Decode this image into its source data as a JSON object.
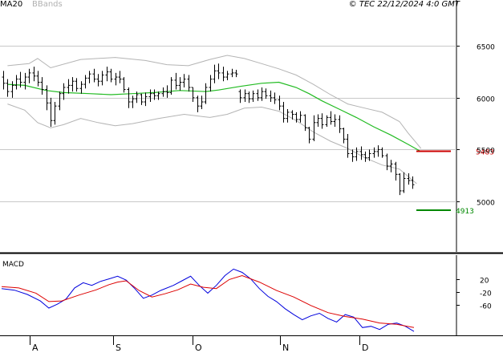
{
  "header": {
    "legend_ma": "MA20",
    "legend_bbands": "BBands",
    "source": "© TEC 22/12/2024 4:0 GMT"
  },
  "colors": {
    "ma": "#22bb22",
    "bbands": "#b4b4b4",
    "price": "#000000",
    "resistance": "#cc0000",
    "support": "#008800",
    "macd": "#0000dd",
    "signal": "#dd0000",
    "grid": "#c8c8c8"
  },
  "chart_data": [
    {
      "type": "candlestick",
      "title": "",
      "y_ticks": [
        6500,
        6000,
        5500,
        5000
      ],
      "ylim": [
        4510,
        6945
      ],
      "x_ticks": [
        "A",
        "S",
        "O",
        "N",
        "D"
      ],
      "ma_label": "MA20",
      "bands_label": "BBands",
      "levels": [
        {
          "name": "resistance",
          "value": 5483,
          "label": "5483"
        },
        {
          "name": "support",
          "value": 4913,
          "label": "4913"
        }
      ],
      "ohlc": [
        [
          6200,
          6260,
          6080,
          6140
        ],
        [
          6140,
          6180,
          6010,
          6060
        ],
        [
          6060,
          6160,
          6000,
          6120
        ],
        [
          6120,
          6220,
          6080,
          6180
        ],
        [
          6180,
          6250,
          6100,
          6150
        ],
        [
          6150,
          6240,
          6080,
          6200
        ],
        [
          6200,
          6280,
          6140,
          6240
        ],
        [
          6240,
          6300,
          6160,
          6210
        ],
        [
          6210,
          6260,
          6110,
          6150
        ],
        [
          6150,
          6200,
          6030,
          6080
        ],
        [
          6080,
          6120,
          5880,
          5950
        ],
        [
          5950,
          6000,
          5720,
          5780
        ],
        [
          5780,
          5960,
          5740,
          5920
        ],
        [
          5920,
          6060,
          5880,
          6040
        ],
        [
          6040,
          6140,
          5980,
          6100
        ],
        [
          6100,
          6180,
          6040,
          6120
        ],
        [
          6120,
          6200,
          6060,
          6160
        ],
        [
          6160,
          6190,
          6060,
          6090
        ],
        [
          6090,
          6160,
          6040,
          6130
        ],
        [
          6130,
          6220,
          6090,
          6190
        ],
        [
          6190,
          6260,
          6140,
          6230
        ],
        [
          6230,
          6280,
          6150,
          6180
        ],
        [
          6180,
          6230,
          6110,
          6160
        ],
        [
          6160,
          6260,
          6120,
          6220
        ],
        [
          6220,
          6300,
          6160,
          6250
        ],
        [
          6250,
          6280,
          6150,
          6180
        ],
        [
          6180,
          6240,
          6120,
          6200
        ],
        [
          6200,
          6260,
          6140,
          6180
        ],
        [
          6180,
          6200,
          6050,
          6080
        ],
        [
          6080,
          6100,
          5900,
          5960
        ],
        [
          5960,
          6020,
          5900,
          5990
        ],
        [
          5990,
          6060,
          5950,
          6030
        ],
        [
          6030,
          6040,
          5930,
          5960
        ],
        [
          5960,
          6050,
          5920,
          6010
        ],
        [
          6010,
          6080,
          5960,
          6040
        ],
        [
          6040,
          6080,
          5980,
          6020
        ],
        [
          6020,
          6060,
          5980,
          6040
        ],
        [
          6040,
          6100,
          6010,
          6060
        ],
        [
          6060,
          6120,
          6000,
          6050
        ],
        [
          6050,
          6200,
          6030,
          6170
        ],
        [
          6170,
          6240,
          6080,
          6120
        ],
        [
          6120,
          6200,
          6070,
          6150
        ],
        [
          6150,
          6230,
          6100,
          6180
        ],
        [
          6180,
          6220,
          6060,
          6100
        ],
        [
          6100,
          6100,
          5960,
          6000
        ],
        [
          6000,
          6020,
          5860,
          5920
        ],
        [
          5920,
          6020,
          5890,
          5960
        ],
        [
          5960,
          6140,
          5940,
          6100
        ],
        [
          6100,
          6220,
          6060,
          6180
        ],
        [
          6180,
          6320,
          6140,
          6260
        ],
        [
          6260,
          6330,
          6180,
          6240
        ],
        [
          6240,
          6300,
          6160,
          6200
        ],
        [
          6200,
          6260,
          6170,
          6230
        ],
        [
          6230,
          6280,
          6200,
          6240
        ],
        [
          6240,
          6270,
          6200,
          6230
        ],
        [
          6060,
          6080,
          5950,
          6000
        ],
        [
          6000,
          6080,
          5960,
          6040
        ],
        [
          6040,
          6060,
          5950,
          5990
        ],
        [
          5990,
          6070,
          5960,
          6040
        ],
        [
          6040,
          6080,
          5970,
          6000
        ],
        [
          6000,
          6100,
          5970,
          6060
        ],
        [
          6060,
          6090,
          5990,
          6020
        ],
        [
          6020,
          6070,
          5960,
          6000
        ],
        [
          6000,
          6050,
          5940,
          5980
        ],
        [
          5980,
          6020,
          5880,
          5920
        ],
        [
          5920,
          5960,
          5760,
          5800
        ],
        [
          5800,
          5890,
          5760,
          5860
        ],
        [
          5860,
          5880,
          5790,
          5840
        ],
        [
          5840,
          5860,
          5760,
          5790
        ],
        [
          5790,
          5870,
          5760,
          5830
        ],
        [
          5830,
          5840,
          5680,
          5710
        ],
        [
          5710,
          5720,
          5560,
          5600
        ],
        [
          5600,
          5830,
          5580,
          5760
        ],
        [
          5760,
          5840,
          5720,
          5800
        ],
        [
          5800,
          5850,
          5700,
          5740
        ],
        [
          5740,
          5830,
          5720,
          5810
        ],
        [
          5810,
          5870,
          5740,
          5770
        ],
        [
          5770,
          5840,
          5720,
          5790
        ],
        [
          5790,
          5830,
          5660,
          5700
        ],
        [
          5700,
          5710,
          5560,
          5600
        ],
        [
          5600,
          5650,
          5420,
          5460
        ],
        [
          5460,
          5500,
          5380,
          5430
        ],
        [
          5430,
          5520,
          5390,
          5480
        ],
        [
          5480,
          5530,
          5400,
          5450
        ],
        [
          5450,
          5480,
          5380,
          5420
        ],
        [
          5420,
          5500,
          5390,
          5460
        ],
        [
          5460,
          5520,
          5420,
          5480
        ],
        [
          5480,
          5540,
          5430,
          5500
        ],
        [
          5500,
          5520,
          5420,
          5440
        ],
        [
          5440,
          5460,
          5300,
          5340
        ],
        [
          5340,
          5400,
          5280,
          5360
        ],
        [
          5360,
          5380,
          5200,
          5260
        ],
        [
          5260,
          5270,
          5060,
          5100
        ],
        [
          5100,
          5280,
          5080,
          5220
        ],
        [
          5220,
          5270,
          5160,
          5200
        ],
        [
          5200,
          5240,
          5120,
          5160
        ]
      ],
      "ma20": [
        [
          1,
          6130
        ],
        [
          5,
          6120
        ],
        [
          10,
          6070
        ],
        [
          14,
          6050
        ],
        [
          20,
          6040
        ],
        [
          25,
          6030
        ],
        [
          30,
          6040
        ],
        [
          35,
          6050
        ],
        [
          41,
          6070
        ],
        [
          47,
          6060
        ],
        [
          50,
          6075
        ],
        [
          55,
          6110
        ],
        [
          60,
          6140
        ],
        [
          64,
          6150
        ],
        [
          68,
          6100
        ],
        [
          71,
          6040
        ],
        [
          74,
          5970
        ],
        [
          78,
          5890
        ],
        [
          82,
          5810
        ],
        [
          86,
          5720
        ],
        [
          90,
          5640
        ],
        [
          94,
          5550
        ],
        [
          97,
          5480
        ]
      ],
      "bb_upper": [
        [
          1,
          6310
        ],
        [
          6,
          6330
        ],
        [
          8,
          6380
        ],
        [
          11,
          6290
        ],
        [
          18,
          6370
        ],
        [
          26,
          6390
        ],
        [
          33,
          6360
        ],
        [
          38,
          6320
        ],
        [
          43,
          6310
        ],
        [
          48,
          6370
        ],
        [
          52,
          6410
        ],
        [
          56,
          6380
        ],
        [
          60,
          6330
        ],
        [
          64,
          6280
        ],
        [
          68,
          6220
        ],
        [
          72,
          6130
        ],
        [
          76,
          6030
        ],
        [
          80,
          5940
        ],
        [
          84,
          5900
        ],
        [
          88,
          5860
        ],
        [
          92,
          5770
        ],
        [
          94,
          5660
        ],
        [
          96,
          5560
        ],
        [
          97,
          5510
        ]
      ],
      "bb_lower": [
        [
          1,
          5940
        ],
        [
          5,
          5880
        ],
        [
          8,
          5760
        ],
        [
          11,
          5710
        ],
        [
          14,
          5740
        ],
        [
          18,
          5800
        ],
        [
          22,
          5760
        ],
        [
          26,
          5730
        ],
        [
          30,
          5750
        ],
        [
          36,
          5800
        ],
        [
          42,
          5840
        ],
        [
          48,
          5810
        ],
        [
          52,
          5840
        ],
        [
          56,
          5900
        ],
        [
          60,
          5910
        ],
        [
          64,
          5870
        ],
        [
          68,
          5780
        ],
        [
          72,
          5670
        ],
        [
          76,
          5580
        ],
        [
          80,
          5510
        ],
        [
          84,
          5420
        ],
        [
          88,
          5350
        ],
        [
          92,
          5310
        ],
        [
          96,
          5170
        ]
      ]
    },
    {
      "type": "line",
      "title": "MACD",
      "y_ticks": [
        20,
        -20,
        -60
      ],
      "ylim": [
        -154,
        93
      ],
      "series": [
        {
          "name": "MACD",
          "points": [
            [
              0,
              -10
            ],
            [
              3,
              -15
            ],
            [
              6,
              -28
            ],
            [
              9,
              -48
            ],
            [
              11,
              -70
            ],
            [
              13,
              -58
            ],
            [
              15,
              -42
            ],
            [
              17,
              -8
            ],
            [
              19,
              8
            ],
            [
              21,
              0
            ],
            [
              23,
              12
            ],
            [
              25,
              20
            ],
            [
              27,
              28
            ],
            [
              29,
              16
            ],
            [
              31,
              -10
            ],
            [
              33,
              -40
            ],
            [
              35,
              -30
            ],
            [
              37,
              -16
            ],
            [
              40,
              0
            ],
            [
              42,
              14
            ],
            [
              44,
              28
            ],
            [
              46,
              0
            ],
            [
              48,
              -24
            ],
            [
              50,
              0
            ],
            [
              52,
              30
            ],
            [
              54,
              50
            ],
            [
              56,
              40
            ],
            [
              58,
              20
            ],
            [
              60,
              -10
            ],
            [
              62,
              -34
            ],
            [
              64,
              -50
            ],
            [
              66,
              -72
            ],
            [
              68,
              -90
            ],
            [
              70,
              -106
            ],
            [
              72,
              -94
            ],
            [
              74,
              -86
            ],
            [
              76,
              -102
            ],
            [
              78,
              -113
            ],
            [
              80,
              -90
            ],
            [
              82,
              -98
            ],
            [
              84,
              -130
            ],
            [
              86,
              -126
            ],
            [
              88,
              -136
            ],
            [
              90,
              -120
            ],
            [
              92,
              -116
            ],
            [
              94,
              -126
            ],
            [
              96,
              -142
            ]
          ]
        },
        {
          "name": "Signal",
          "points": [
            [
              0,
              -4
            ],
            [
              4,
              -8
            ],
            [
              8,
              -24
            ],
            [
              11,
              -50
            ],
            [
              14,
              -48
            ],
            [
              18,
              -30
            ],
            [
              22,
              -14
            ],
            [
              25,
              2
            ],
            [
              27,
              10
            ],
            [
              29,
              14
            ],
            [
              32,
              -16
            ],
            [
              35,
              -36
            ],
            [
              38,
              -26
            ],
            [
              41,
              -14
            ],
            [
              44,
              4
            ],
            [
              47,
              -6
            ],
            [
              50,
              -10
            ],
            [
              53,
              18
            ],
            [
              56,
              30
            ],
            [
              60,
              10
            ],
            [
              64,
              -16
            ],
            [
              68,
              -36
            ],
            [
              72,
              -62
            ],
            [
              76,
              -84
            ],
            [
              80,
              -96
            ],
            [
              84,
              -104
            ],
            [
              88,
              -116
            ],
            [
              92,
              -120
            ],
            [
              96,
              -130
            ]
          ]
        }
      ]
    }
  ],
  "time_axis": {
    "labels": [
      "A",
      "S",
      "O",
      "N",
      "D"
    ]
  }
}
